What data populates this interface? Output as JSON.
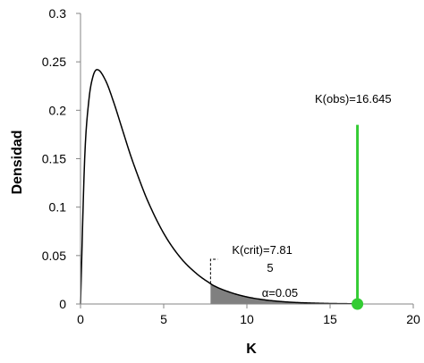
{
  "chart_data": {
    "type": "line",
    "title": "",
    "xlabel": "K",
    "ylabel": "Densidad",
    "xlim": [
      0,
      20
    ],
    "ylim": [
      0,
      0.3
    ],
    "x_ticks": [
      0,
      5,
      10,
      15,
      20
    ],
    "y_ticks": [
      0,
      0.05,
      0.1,
      0.15,
      0.2,
      0.25,
      0.3
    ],
    "grid": false,
    "legend": "none",
    "series": [
      {
        "x": [
          0,
          0.25,
          0.5,
          0.75,
          1,
          1.5,
          2,
          2.5,
          3,
          3.5,
          4,
          5,
          6,
          7,
          7.815,
          8,
          9,
          10,
          11,
          12,
          13,
          14,
          15,
          16,
          16.645
        ],
        "y": [
          0,
          0.15,
          0.21,
          0.235,
          0.242,
          0.231,
          0.208,
          0.181,
          0.154,
          0.13,
          0.108,
          0.073,
          0.048,
          0.031,
          0.021,
          0.019,
          0.012,
          0.0073,
          0.0044,
          0.0026,
          0.0015,
          0.0009,
          0.0005,
          0.0003,
          0.0002
        ]
      }
    ],
    "shaded_region": {
      "from": 7.815,
      "to": 16.645,
      "color": "#808080"
    },
    "critical": {
      "x": 7.815,
      "label_line1": "K(crit)=7.81",
      "label_line2": "5"
    },
    "alpha_label": "α=0.05",
    "observed": {
      "x": 16.645,
      "y_top": 0.185,
      "label": "K(obs)=16.645",
      "color": "#33cc33"
    }
  }
}
